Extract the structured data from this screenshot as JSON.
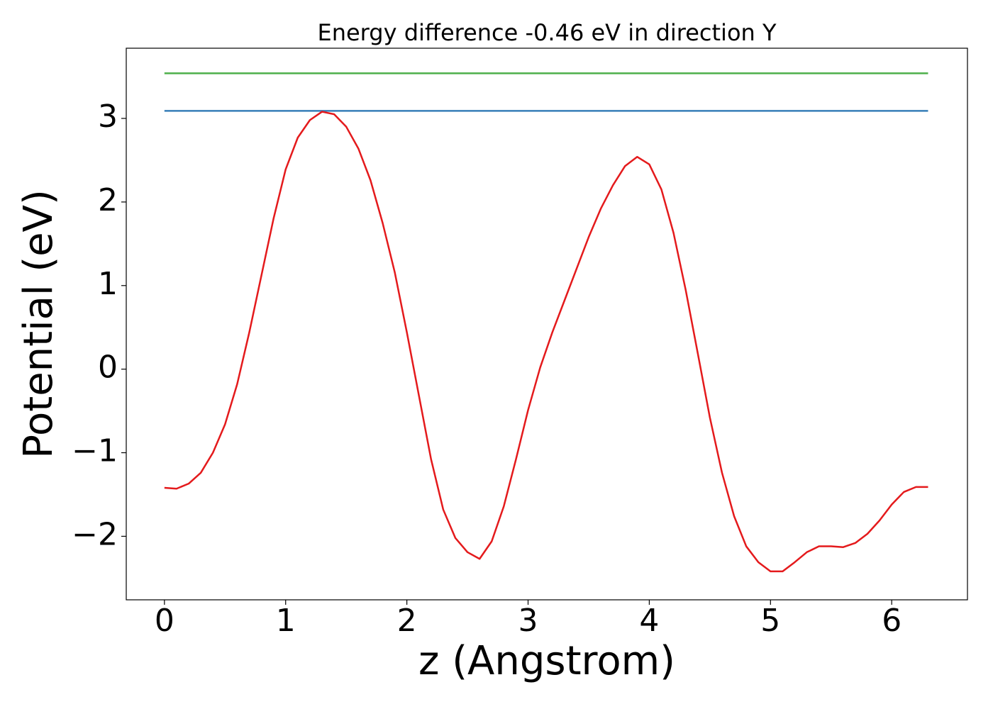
{
  "chart_data": {
    "type": "line",
    "title": "Energy difference -0.46 eV in direction Y",
    "xlabel": "z (Angstrom)",
    "ylabel": "Potential (eV)",
    "xlim": [
      -0.315,
      6.625
    ],
    "ylim": [
      -2.76,
      3.84
    ],
    "xticks": [
      0,
      1,
      2,
      3,
      4,
      5,
      6
    ],
    "yticks": [
      {
        "value": -2,
        "label": "−2"
      },
      {
        "value": -1,
        "label": "−1"
      },
      0,
      1,
      2,
      3
    ],
    "grid": false,
    "series": [
      {
        "color": "#4daf4a",
        "x": [
          0,
          6.3
        ],
        "values": [
          3.54,
          3.54
        ]
      },
      {
        "color": "#377eb8",
        "x": [
          0,
          6.3
        ],
        "values": [
          3.09,
          3.09
        ]
      },
      {
        "color": "#e41a1c",
        "x": [
          0,
          0.1,
          0.2,
          0.3,
          0.4,
          0.5,
          0.6,
          0.7,
          0.8,
          0.9,
          1.0,
          1.1,
          1.2,
          1.3,
          1.4,
          1.5,
          1.6,
          1.7,
          1.8,
          1.9,
          2.0,
          2.1,
          2.2,
          2.3,
          2.4,
          2.5,
          2.6,
          2.7,
          2.8,
          2.9,
          3.0,
          3.1,
          3.2,
          3.3,
          3.4,
          3.5,
          3.6,
          3.7,
          3.8,
          3.9,
          4.0,
          4.1,
          4.2,
          4.3,
          4.4,
          4.5,
          4.6,
          4.7,
          4.8,
          4.9,
          5.0,
          5.1,
          5.2,
          5.3,
          5.4,
          5.5,
          5.6,
          5.7,
          5.8,
          5.9,
          6.0,
          6.1,
          6.2,
          6.3
        ],
        "values": [
          -1.42,
          -1.43,
          -1.37,
          -1.24,
          -1.0,
          -0.66,
          -0.18,
          0.44,
          1.12,
          1.8,
          2.39,
          2.77,
          2.98,
          3.08,
          3.05,
          2.9,
          2.64,
          2.26,
          1.75,
          1.16,
          0.44,
          -0.32,
          -1.08,
          -1.68,
          -2.02,
          -2.19,
          -2.27,
          -2.06,
          -1.64,
          -1.08,
          -0.49,
          0.02,
          0.44,
          0.82,
          1.2,
          1.58,
          1.92,
          2.2,
          2.43,
          2.54,
          2.45,
          2.15,
          1.63,
          0.95,
          0.19,
          -0.58,
          -1.24,
          -1.76,
          -2.12,
          -2.31,
          -2.42,
          -2.42,
          -2.31,
          -2.19,
          -2.12,
          -2.12,
          -2.13,
          -2.08,
          -1.97,
          -1.81,
          -1.62,
          -1.47,
          -1.41,
          -1.41
        ]
      }
    ]
  }
}
